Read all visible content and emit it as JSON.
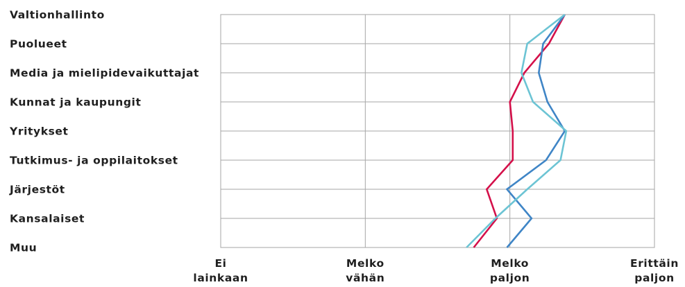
{
  "chart_data": {
    "type": "line",
    "orientation": "horizontal-profile",
    "categories": [
      "Valtionhallinto",
      "Puolueet",
      "Media ja mielipidevaikuttajat",
      "Kunnat ja kaupungit",
      "Yritykset",
      "Tutkimus- ja oppilaitokset",
      "Järjestöt",
      "Kansalaiset",
      "Muu"
    ],
    "x_ticks": [
      {
        "value": 1,
        "lines": [
          "Ei",
          "lainkaan"
        ]
      },
      {
        "value": 2,
        "lines": [
          "Melko",
          "vähän"
        ]
      },
      {
        "value": 3,
        "lines": [
          "Melko",
          "paljon"
        ]
      },
      {
        "value": 4,
        "lines": [
          "Erittäin",
          "paljon"
        ]
      }
    ],
    "xlim": [
      1,
      4
    ],
    "grid": true,
    "legend": "none",
    "series": [
      {
        "color": "#d4104a",
        "values": [
          3.38,
          3.27,
          3.1,
          3.0,
          3.02,
          3.02,
          2.84,
          2.91,
          2.75
        ]
      },
      {
        "color": "#3f85c6",
        "values": [
          3.38,
          3.23,
          3.2,
          3.26,
          3.38,
          3.25,
          2.98,
          3.15,
          2.98
        ]
      },
      {
        "color": "#6cc4d4",
        "values": [
          3.38,
          3.12,
          3.08,
          3.16,
          3.39,
          3.35,
          3.12,
          2.9,
          2.7
        ]
      }
    ],
    "colors": {
      "grid": "#a6a6a6",
      "text": "#1f1f1f"
    }
  }
}
